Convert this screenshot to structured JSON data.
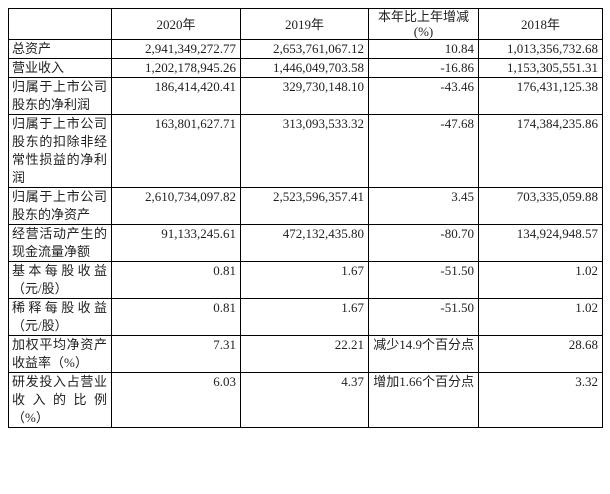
{
  "table": {
    "columns": [
      "",
      "2020年",
      "2019年",
      "本年比上年增减(%)",
      "2018年"
    ],
    "rows": [
      [
        "总资产",
        "2,941,349,272.77",
        "2,653,761,067.12",
        "10.84",
        "1,013,356,732.68"
      ],
      [
        "营业收入",
        "1,202,178,945.26",
        "1,446,049,703.58",
        "-16.86",
        "1,153,305,551.31"
      ],
      [
        "归属于上市公司股东的净利润",
        "186,414,420.41",
        "329,730,148.10",
        "-43.46",
        "176,431,125.38"
      ],
      [
        "归属于上市公司股东的扣除非经常性损益的净利润",
        "163,801,627.71",
        "313,093,533.32",
        "-47.68",
        "174,384,235.86"
      ],
      [
        "归属于上市公司股东的净资产",
        "2,610,734,097.82",
        "2,523,596,357.41",
        "3.45",
        "703,335,059.88"
      ],
      [
        "经营活动产生的现金流量净额",
        "91,133,245.61",
        "472,132,435.80",
        "-80.70",
        "134,924,948.57"
      ],
      [
        "基本每股收益（元/股）",
        "0.81",
        "1.67",
        "-51.50",
        "1.02"
      ],
      [
        "稀释每股收益（元/股）",
        "0.81",
        "1.67",
        "-51.50",
        "1.02"
      ],
      [
        "加权平均净资产收益率（%）",
        "7.31",
        "22.21",
        "减少14.9个百分点",
        "28.68"
      ],
      [
        "研发投入占营业收入的比例（%）",
        "6.03",
        "4.37",
        "增加1.66个百分点",
        "3.32"
      ]
    ]
  },
  "colors": {
    "border": "#000000",
    "text": "#1f1f1f",
    "background": "#ffffff"
  }
}
